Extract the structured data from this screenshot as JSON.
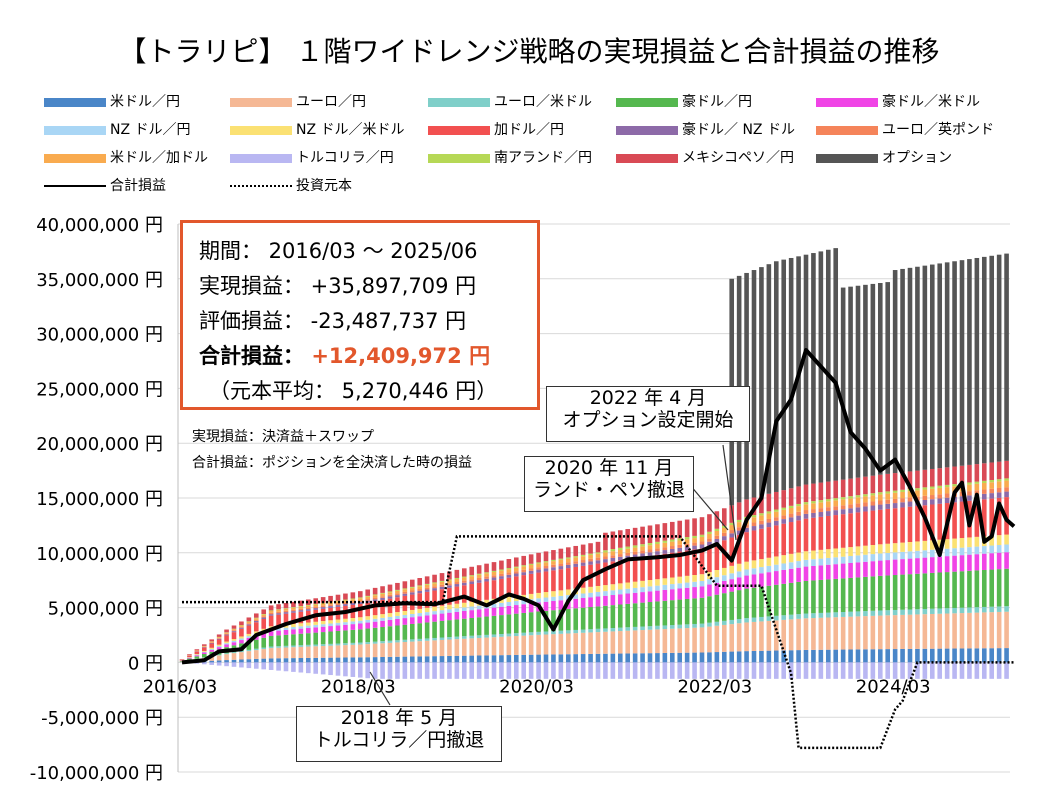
{
  "chart_data": {
    "type": "bar",
    "title": "【トラリピ】 １階ワイドレンジ戦略の実現損益と合計損益の推移",
    "xlabel": "",
    "ylabel": "",
    "ylim": [
      -10000000,
      40000000
    ],
    "yticks": [
      "40,000,000 円",
      "35,000,000 円",
      "30,000,000 円",
      "25,000,000 円",
      "20,000,000 円",
      "15,000,000 円",
      "10,000,000 円",
      "5,000,000 円",
      "0 円",
      "-5,000,000 円",
      "-10,000,000 円"
    ],
    "ytick_values": [
      40000000,
      35000000,
      30000000,
      25000000,
      20000000,
      15000000,
      10000000,
      5000000,
      0,
      -5000000,
      -10000000
    ],
    "xticks": [
      "2016/03",
      "2018/03",
      "2020/03",
      "2022/03",
      "2024/03"
    ],
    "xtick_month_index": [
      0,
      24,
      48,
      72,
      96
    ],
    "months": 112,
    "stack_order": [
      "米ドル／円",
      "ユーロ／円",
      "ユーロ／米ドル",
      "豪ドル／円",
      "豪ドル／米ドル",
      "NZ ドル／円",
      "NZ ドル／米ドル",
      "加ドル／円",
      "豪ドル／ NZ ドル",
      "ユーロ／英ポンド",
      "米ドル／加ドル",
      "南アランド／円",
      "メキシコペソ／円",
      "オプション"
    ],
    "negative_series": "トルコリラ／円",
    "legend": [
      {
        "name": "米ドル／円",
        "color": "#4a86c8"
      },
      {
        "name": "ユーロ／円",
        "color": "#f5b895"
      },
      {
        "name": "ユーロ／米ドル",
        "color": "#7fcfc9"
      },
      {
        "name": "豪ドル／円",
        "color": "#55b84f"
      },
      {
        "name": "豪ドル／米ドル",
        "color": "#f044e6"
      },
      {
        "name": "NZ ドル／円",
        "color": "#a9d6f5"
      },
      {
        "name": "NZ ドル／米ドル",
        "color": "#fbe173"
      },
      {
        "name": "加ドル／円",
        "color": "#f25050"
      },
      {
        "name": "豪ドル／ NZ ドル",
        "color": "#8d6aa8"
      },
      {
        "name": "ユーロ／英ポンド",
        "color": "#f5845a"
      },
      {
        "name": "米ドル／加ドル",
        "color": "#f9ab4f"
      },
      {
        "name": "トルコリラ／円",
        "color": "#b9b7f2"
      },
      {
        "name": "南アランド／円",
        "color": "#b6d856"
      },
      {
        "name": "メキシコペソ／円",
        "color": "#d94a55"
      },
      {
        "name": "オプション",
        "color": "#555555"
      },
      {
        "name": "合計損益",
        "color": "#000000",
        "style": "solid-line"
      },
      {
        "name": "投資元本",
        "color": "#000000",
        "style": "dotted-line"
      }
    ],
    "series_final_values": {
      "米ドル／円": 1300000,
      "ユーロ／円": 3300000,
      "ユーロ／米ドル": 500000,
      "豪ドル／円": 3400000,
      "豪ドル／米ドル": 1500000,
      "NZ ドル／円": 700000,
      "NZ ドル／米ドル": 900000,
      "加ドル／円": 3400000,
      "豪ドル／ NZ ドル": 500000,
      "ユーロ／英ポンド": 400000,
      "米ドル／加ドル": 600000,
      "南アランド／円": 200000,
      "メキシコペソ／円": 1600000,
      "オプション": 19000000,
      "トルコリラ／円": -1500000
    },
    "stack_total_anchor_points": [
      [
        0,
        300000
      ],
      [
        6,
        3000000
      ],
      [
        12,
        5200000
      ],
      [
        24,
        6500000
      ],
      [
        36,
        8300000
      ],
      [
        48,
        10000000
      ],
      [
        60,
        11500000
      ],
      [
        70,
        12700000
      ],
      [
        76,
        14500000
      ],
      [
        84,
        16000000
      ],
      [
        94,
        17000000
      ],
      [
        111,
        18400000
      ]
    ],
    "option_active_months": [
      74,
      111
    ],
    "option_total_anchor_points": [
      [
        74,
        35000000
      ],
      [
        80,
        36600000
      ],
      [
        88,
        37800000
      ],
      [
        89,
        34200000
      ],
      [
        95,
        34700000
      ],
      [
        96,
        35800000
      ],
      [
        111,
        37300000
      ]
    ],
    "total_pl_anchor_points": [
      [
        0,
        0
      ],
      [
        3,
        200000
      ],
      [
        5,
        1000000
      ],
      [
        8,
        1200000
      ],
      [
        10,
        2500000
      ],
      [
        14,
        3500000
      ],
      [
        18,
        4300000
      ],
      [
        22,
        4600000
      ],
      [
        26,
        5200000
      ],
      [
        30,
        5400000
      ],
      [
        34,
        5300000
      ],
      [
        38,
        6000000
      ],
      [
        41,
        5200000
      ],
      [
        44,
        6200000
      ],
      [
        46,
        5800000
      ],
      [
        48,
        5200000
      ],
      [
        50,
        3000000
      ],
      [
        52,
        5600000
      ],
      [
        54,
        7500000
      ],
      [
        57,
        8500000
      ],
      [
        60,
        9400000
      ],
      [
        64,
        9600000
      ],
      [
        67,
        9800000
      ],
      [
        70,
        10200000
      ],
      [
        72,
        10800000
      ],
      [
        74,
        9300000
      ],
      [
        76,
        13000000
      ],
      [
        78,
        15000000
      ],
      [
        80,
        22000000
      ],
      [
        82,
        24000000
      ],
      [
        84,
        28500000
      ],
      [
        86,
        27000000
      ],
      [
        88,
        25500000
      ],
      [
        90,
        21000000
      ],
      [
        92,
        19500000
      ],
      [
        94,
        17500000
      ],
      [
        96,
        18500000
      ],
      [
        98,
        16000000
      ],
      [
        100,
        13200000
      ],
      [
        102,
        9800000
      ],
      [
        104,
        15500000
      ],
      [
        105,
        16400000
      ],
      [
        106,
        12500000
      ],
      [
        107,
        15300000
      ],
      [
        108,
        11000000
      ],
      [
        109,
        11500000
      ],
      [
        110,
        14500000
      ],
      [
        111,
        13000000
      ],
      [
        112,
        12409972
      ]
    ],
    "principal_anchor_points": [
      [
        0,
        5500000
      ],
      [
        35,
        5500000
      ],
      [
        35,
        5200000
      ],
      [
        37,
        11500000
      ],
      [
        67,
        11500000
      ],
      [
        72,
        7000000
      ],
      [
        78,
        7000000
      ],
      [
        82,
        -1000000
      ],
      [
        83,
        -7800000
      ],
      [
        94,
        -7800000
      ],
      [
        96,
        -4300000
      ],
      [
        97,
        -3500000
      ],
      [
        99,
        0
      ],
      [
        112,
        0
      ]
    ],
    "annotations": {
      "note1": "実現損益：決済益＋スワップ",
      "note2": "合計損益：ポジションを全決済した時の損益",
      "callout_2022_line1": "2022 年 4 月",
      "callout_2022_line2": "オプション設定開始",
      "callout_2020_line1": "2020 年 11 月",
      "callout_2020_line2": "ランド・ペソ撤退",
      "callout_2018_line1": "2018 年 5 月",
      "callout_2018_line2": "トルコリラ／円撤退"
    }
  },
  "summary": {
    "period": "期間：  2016/03 ～ 2025/06",
    "realized": "実現損益：  +35,897,709 円",
    "unrealized": "評価損益：  -23,487,737 円",
    "total_label": "合計損益：",
    "total_value": "+12,409,972 円",
    "principal": "（元本平均：  5,270,446 円）"
  }
}
